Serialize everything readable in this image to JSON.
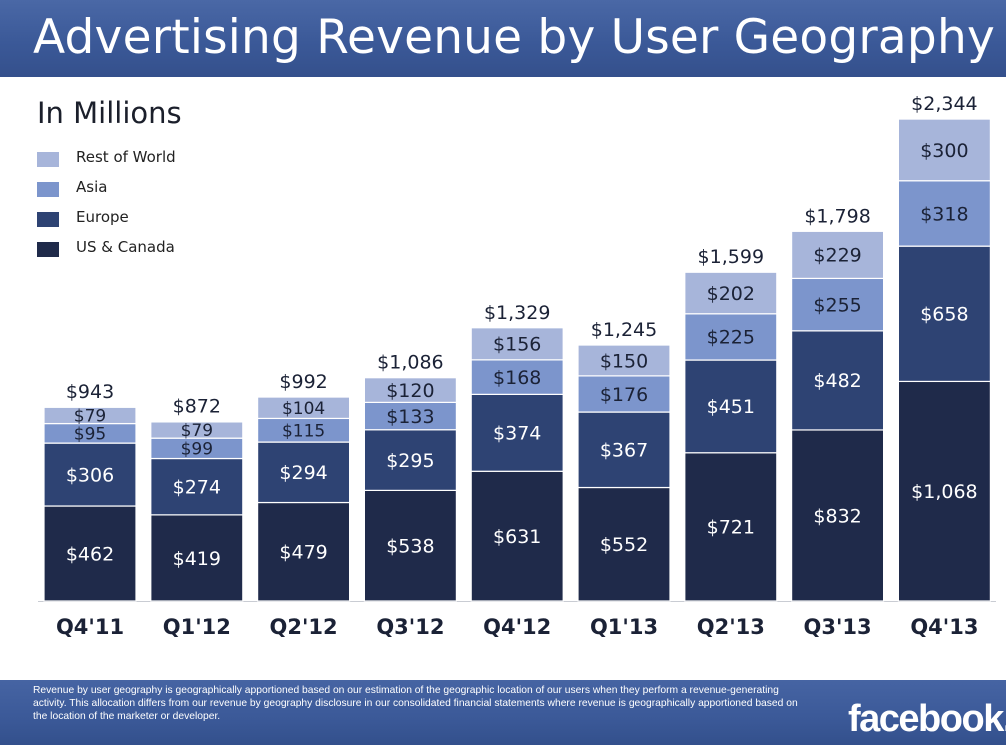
{
  "header": {
    "title": "Advertising Revenue by User Geography"
  },
  "subtitle": "In Millions",
  "colors": {
    "us_canada": "#1f2a4a",
    "europe": "#2e4373",
    "asia": "#7c95cc",
    "rest_of_world": "#a7b5da",
    "header_bg": "#3b5998",
    "axis_label": "#1b2236"
  },
  "chart_data": {
    "type": "bar",
    "stacked": true,
    "unit": "$ millions",
    "categories": [
      "Q4'11",
      "Q1'12",
      "Q2'12",
      "Q3'12",
      "Q4'12",
      "Q1'13",
      "Q2'13",
      "Q3'13",
      "Q4'13"
    ],
    "series": [
      {
        "name": "US & Canada",
        "color_key": "us_canada",
        "values": [
          462,
          419,
          479,
          538,
          631,
          552,
          721,
          832,
          1068
        ],
        "labels": [
          "$462",
          "$419",
          "$479",
          "$538",
          "$631",
          "$552",
          "$721",
          "$832",
          "$1,068"
        ]
      },
      {
        "name": "Europe",
        "color_key": "europe",
        "values": [
          306,
          274,
          294,
          295,
          374,
          367,
          451,
          482,
          658
        ],
        "labels": [
          "$306",
          "$274",
          "$294",
          "$295",
          "$374",
          "$367",
          "$451",
          "$482",
          "$658"
        ]
      },
      {
        "name": "Asia",
        "color_key": "asia",
        "values": [
          95,
          99,
          115,
          133,
          168,
          176,
          225,
          255,
          318
        ],
        "labels": [
          "$95",
          "$99",
          "$115",
          "$133",
          "$168",
          "$176",
          "$225",
          "$255",
          "$318"
        ]
      },
      {
        "name": "Rest of World",
        "color_key": "rest_of_world",
        "values": [
          79,
          79,
          104,
          120,
          156,
          150,
          202,
          229,
          300
        ],
        "labels": [
          "$79",
          "$79",
          "$104",
          "$120",
          "$156",
          "$150",
          "$202",
          "$229",
          "$300"
        ]
      }
    ],
    "totals": [
      943,
      872,
      992,
      1086,
      1329,
      1245,
      1599,
      1798,
      2344
    ],
    "total_labels": [
      "$943",
      "$872",
      "$992",
      "$1,086",
      "$1,329",
      "$1,245",
      "$1,599",
      "$1,798",
      "$2,344"
    ],
    "legend": {
      "placement": "top-left",
      "order": [
        "Rest of World",
        "Asia",
        "Europe",
        "US & Canada"
      ]
    },
    "grid": false,
    "ylim": [
      0,
      2344
    ]
  },
  "footer": {
    "note": "Revenue by user geography is geographically apportioned based on our estimation of the geographic location of our users when they perform a revenue-generating activity. This allocation differs from our revenue by geography disclosure in our consolidated financial statements where revenue is geographically apportioned based on the location of the marketer or developer.",
    "logo": "facebook."
  }
}
